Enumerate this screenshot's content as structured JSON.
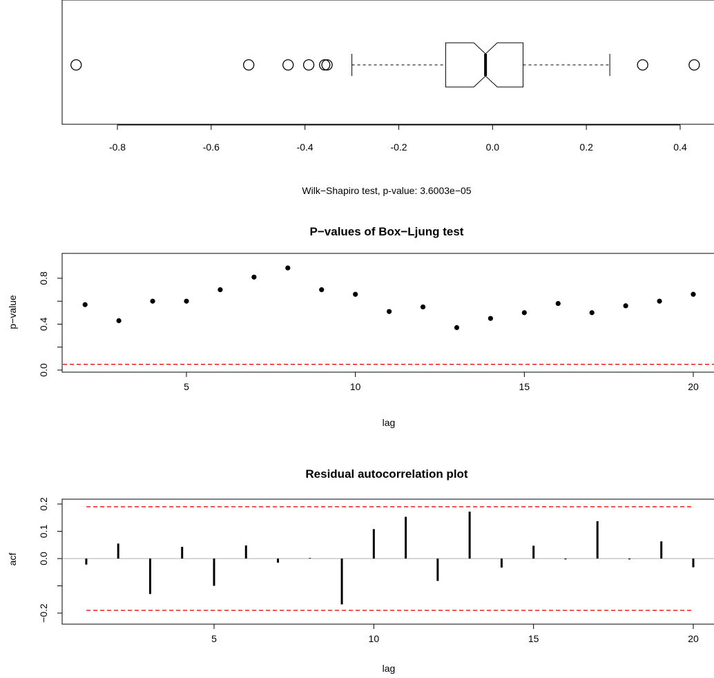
{
  "chart_data": [
    {
      "type": "boxplot",
      "orientation": "horizontal",
      "notched": true,
      "xlim": [
        -0.93,
        0.43
      ],
      "x_ticks": [
        "-0.8",
        "-0.6",
        "-0.4",
        "-0.2",
        "0.0",
        "0.2",
        "0.4"
      ],
      "x_tick_values": [
        -0.8,
        -0.6,
        -0.4,
        -0.2,
        0.0,
        0.2,
        0.4
      ],
      "stats": {
        "whisker_low": -0.3,
        "q1": -0.1,
        "median": -0.015,
        "q3": 0.065,
        "whisker_high": 0.25,
        "notch_low": -0.04,
        "notch_high": 0.01
      },
      "outliers": [
        -0.888,
        -0.52,
        -0.436,
        -0.392,
        -0.358,
        -0.353,
        0.32,
        0.43
      ],
      "caption": "Wilk−Shapiro test, p-value:  3.6003e−05"
    },
    {
      "type": "scatter",
      "title": "P−values of Box−Ljung test",
      "xlabel": "lag",
      "ylabel": "p−value",
      "xlim": [
        1.4,
        20.6
      ],
      "ylim": [
        -0.03,
        1.0
      ],
      "x_ticks": [
        "5",
        "10",
        "15",
        "20"
      ],
      "x_tick_values": [
        5,
        10,
        15,
        20
      ],
      "y_ticks": [
        "0.0",
        "0.4",
        "0.8"
      ],
      "y_tick_values": [
        0.0,
        0.4,
        0.8
      ],
      "x": [
        2,
        3,
        4,
        5,
        6,
        7,
        8,
        9,
        10,
        11,
        12,
        13,
        14,
        15,
        16,
        17,
        18,
        19,
        20
      ],
      "y": [
        0.57,
        0.43,
        0.6,
        0.6,
        0.7,
        0.81,
        0.89,
        0.7,
        0.66,
        0.51,
        0.55,
        0.37,
        0.45,
        0.5,
        0.58,
        0.5,
        0.56,
        0.6,
        0.66
      ],
      "reference_line": 0.05,
      "reference_color": "#ff0000"
    },
    {
      "type": "bar",
      "style": "spike",
      "title": "Residual autocorrelation plot",
      "xlabel": "lag",
      "ylabel": "acf",
      "xlim": [
        0.6,
        20.4
      ],
      "ylim": [
        -0.21,
        0.22
      ],
      "x_ticks": [
        "5",
        "10",
        "15",
        "20"
      ],
      "x_tick_values": [
        5,
        10,
        15,
        20
      ],
      "y_ticks": [
        "−0.2",
        "0.0",
        "0.1",
        "0.2"
      ],
      "y_tick_values": [
        -0.2,
        0.0,
        0.1,
        0.2
      ],
      "y_minor_ticks": [
        -0.1
      ],
      "x": [
        1,
        2,
        3,
        4,
        5,
        6,
        7,
        8,
        9,
        10,
        11,
        12,
        13,
        14,
        15,
        16,
        17,
        18,
        19,
        20
      ],
      "values": [
        -0.022,
        0.055,
        -0.13,
        0.043,
        -0.1,
        0.048,
        -0.015,
        0.002,
        -0.168,
        0.108,
        0.153,
        -0.082,
        0.172,
        -0.033,
        0.047,
        -0.003,
        0.137,
        -0.003,
        0.063,
        -0.032
      ],
      "confidence_bound": 0.19,
      "confidence_color": "#ff0000",
      "zero_line_color": "#bebebe"
    }
  ]
}
